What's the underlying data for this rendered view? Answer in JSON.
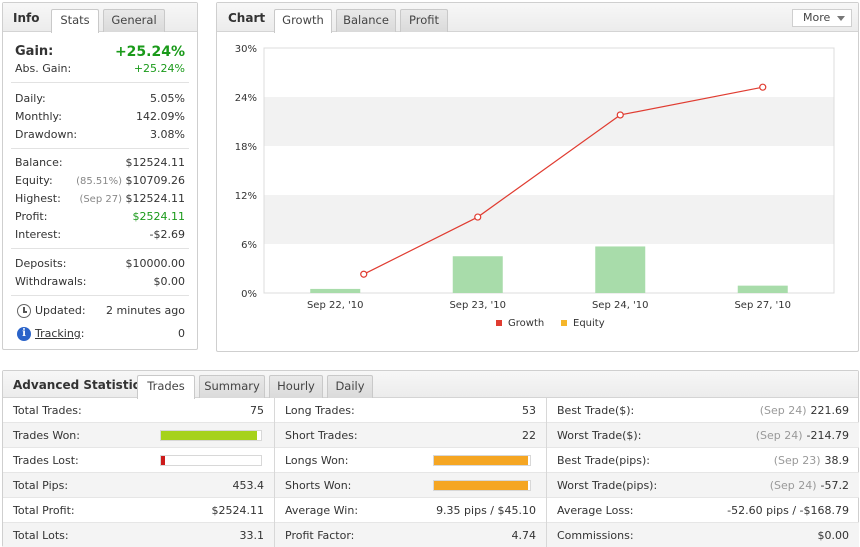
{
  "info": {
    "tabs": [
      "Info",
      "Stats",
      "General"
    ],
    "gain_label": "Gain:",
    "gain_value": "+25.24%",
    "abs_gain_label": "Abs. Gain:",
    "abs_gain_value": "+25.24%",
    "daily_label": "Daily:",
    "daily_value": "5.05%",
    "monthly_label": "Monthly:",
    "monthly_value": "142.09%",
    "drawdown_label": "Drawdown:",
    "drawdown_value": "3.08%",
    "balance_label": "Balance:",
    "balance_value": "$12524.11",
    "equity_label": "Equity:",
    "equity_sub": "(85.51%)",
    "equity_value": "$10709.26",
    "highest_label": "Highest:",
    "highest_sub": "(Sep 27)",
    "highest_value": "$12524.11",
    "profit_label": "Profit:",
    "profit_value": "$2524.11",
    "interest_label": "Interest:",
    "interest_value": "-$2.69",
    "deposits_label": "Deposits:",
    "deposits_value": "$10000.00",
    "withdrawals_label": "Withdrawals:",
    "withdrawals_value": "$0.00",
    "updated_label": "Updated:",
    "updated_value": "2 minutes ago",
    "tracking_label": "Tracking",
    "tracking_colon": ":",
    "tracking_value": "0"
  },
  "chart_panel": {
    "title": "Chart",
    "tabs": [
      "Growth",
      "Balance",
      "Profit"
    ],
    "more_label": "More"
  },
  "chart_data": {
    "type": "line",
    "categories": [
      "Sep 22, '10",
      "Sep 23, '10",
      "Sep 24, '10",
      "Sep 27, '10"
    ],
    "y_ticks": [
      "30%",
      "24%",
      "18%",
      "12%",
      "6%",
      "0%"
    ],
    "ylim": [
      0,
      30
    ],
    "series": [
      {
        "name": "Growth",
        "kind": "line",
        "color": "#e03c31",
        "x": [
          0.2,
          1.0,
          2.0,
          3.0
        ],
        "values": [
          2.3,
          9.3,
          21.8,
          25.2
        ]
      },
      {
        "name": "Growth",
        "kind": "bar",
        "color": "#a8dcaa",
        "values": [
          0.5,
          4.5,
          5.7,
          0.9
        ]
      }
    ],
    "legend": [
      {
        "name": "Growth",
        "color": "#e03c31"
      },
      {
        "name": "Equity",
        "color": "#f5b62a"
      }
    ],
    "legend_position": "bottom",
    "grid": true
  },
  "advanced": {
    "title": "Advanced Statistics",
    "tabs": [
      "Trades",
      "Summary",
      "Hourly",
      "Daily"
    ],
    "col1": [
      {
        "label": "Total Trades:",
        "value": "75"
      },
      {
        "label": "Trades Won:",
        "value": "",
        "bar_fraction": 0.96,
        "bar_color": "#a6d21c"
      },
      {
        "label": "Trades Lost:",
        "value": "",
        "bar_fraction": 0.04,
        "bar_color": "#cc1b1b"
      },
      {
        "label": "Total Pips:",
        "value": "453.4"
      },
      {
        "label": "Total Profit:",
        "value": "$2524.11"
      },
      {
        "label": "Total Lots:",
        "value": "33.1"
      }
    ],
    "col2": [
      {
        "label": "Long Trades:",
        "value": "53"
      },
      {
        "label": "Short Trades:",
        "value": "22"
      },
      {
        "label": "Longs Won:",
        "value": "",
        "bar_fraction": 0.98,
        "bar_color": "#f5a623"
      },
      {
        "label": "Shorts Won:",
        "value": "",
        "bar_fraction": 0.98,
        "bar_color": "#f5a623"
      },
      {
        "label": "Average Win:",
        "value": "9.35 pips / $45.10"
      },
      {
        "label": "Profit Factor:",
        "value": "4.74"
      }
    ],
    "col3": [
      {
        "label": "Best Trade($):",
        "sub": "(Sep 24)",
        "value": "221.69"
      },
      {
        "label": "Worst Trade($):",
        "sub": "(Sep 24)",
        "value": "-214.79"
      },
      {
        "label": "Best Trade(pips):",
        "sub": "(Sep 23)",
        "value": "38.9"
      },
      {
        "label": "Worst Trade(pips):",
        "sub": "(Sep 24)",
        "value": "-57.2"
      },
      {
        "label": "Average Loss:",
        "sub": "",
        "value": "-52.60 pips / -$168.79"
      },
      {
        "label": "Commissions:",
        "sub": "",
        "value": "$0.00"
      }
    ]
  }
}
